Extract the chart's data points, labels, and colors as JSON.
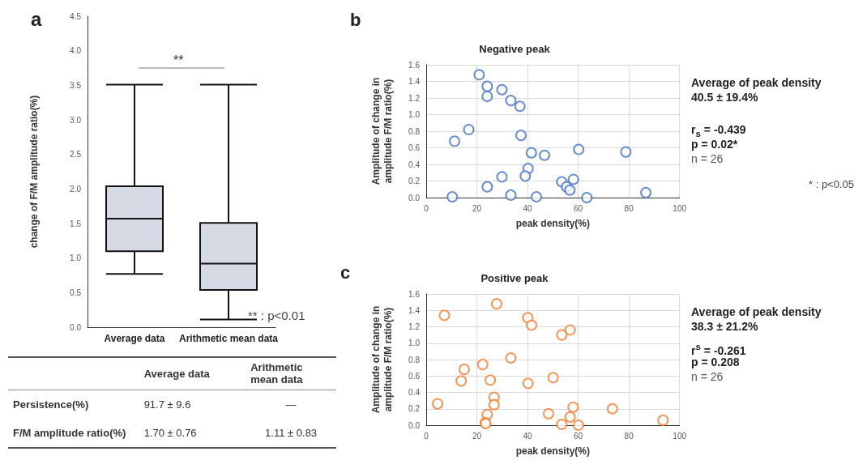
{
  "chart_data": [
    {
      "type": "box",
      "ylabel": "change of F/M amplitude ratio(%)",
      "categories": [
        "Average data",
        "Arithmetic mean data"
      ],
      "color": "#d6dae4",
      "boxes": [
        {
          "low": 0.77,
          "q1": 1.1,
          "median": 1.57,
          "q3": 2.04,
          "high": 3.51
        },
        {
          "low": 0.11,
          "q1": 0.54,
          "median": 0.92,
          "q3": 1.51,
          "high": 3.51
        }
      ],
      "ylim": [
        0,
        4.5
      ],
      "yticks": [
        {
          "value": 0,
          "label": "0.0"
        },
        0.5,
        {
          "value": 1,
          "label": "1.0"
        },
        1.5,
        {
          "value": 2,
          "label": "2.0"
        },
        2.5,
        {
          "value": 3,
          "label": "3.0"
        },
        3.5,
        {
          "value": 4,
          "label": "4.0"
        },
        4.5
      ],
      "annotations": [
        "a",
        "**",
        "** : p<0.01"
      ]
    },
    {
      "type": "other",
      "annotations": [
        "Average data",
        "Arithmetic mean data",
        "Persistence(%)",
        "91.7 ± 9.6",
        "—",
        "F/M amplitude ratio(%)",
        "1.70 ± 0.76",
        "1.11 ± 0.83"
      ]
    },
    {
      "type": "scatter",
      "title": "Negative peak",
      "xlabel": "peak density(%)",
      "ylabel": "Amplitude of change in amplitude F/M ratio(%)",
      "marker": "circle",
      "grid": true,
      "xlim": [
        0,
        100
      ],
      "xticks": [
        0,
        20,
        40,
        60,
        80,
        100
      ],
      "ylim": [
        0,
        1.6
      ],
      "yticks": [
        {
          "value": 0,
          "label": "0.0"
        },
        0.2,
        0.4,
        0.6,
        0.8,
        {
          "value": 1,
          "label": "1.0"
        },
        1.2,
        1.4,
        1.6
      ],
      "series": [
        {
          "color": "#4472c4",
          "x": [
            20.9,
            24.1,
            24.1,
            29.9,
            33.4,
            37.0,
            16.8,
            11.2,
            37.4,
            41.5,
            46.7,
            60.2,
            78.8,
            40.2,
            39.1,
            29.9,
            24.1,
            10.3,
            33.4,
            43.5,
            53.5,
            58.1,
            55.4,
            56.7,
            63.4,
            86.7
          ],
          "values": [
            1.48,
            1.34,
            1.22,
            1.3,
            1.17,
            1.1,
            0.82,
            0.68,
            0.75,
            0.54,
            0.51,
            0.58,
            0.55,
            0.35,
            0.26,
            0.25,
            0.13,
            0.01,
            0.03,
            0.01,
            0.19,
            0.22,
            0.13,
            0.09,
            0.0,
            0.06
          ]
        }
      ],
      "annotations": [
        "b",
        "Average of peak density",
        "40.5 ± 19.4%",
        "r$_{s}$ = -0.439",
        "p = 0.02*",
        "n = 26",
        "* : p<0.05"
      ]
    },
    {
      "type": "scatter",
      "title": "Positive peak",
      "xlabel": "peak density(%)",
      "ylabel": "Amplitude of change in amplitude F/M ratio(%)",
      "marker": "circle",
      "grid": true,
      "xlim": [
        0,
        100
      ],
      "xticks": [
        0,
        20,
        40,
        60,
        80,
        100
      ],
      "ylim": [
        0,
        1.6
      ],
      "yticks": [
        {
          "value": 0,
          "label": "0.0"
        },
        0.2,
        0.4,
        0.6,
        0.8,
        {
          "value": 1,
          "label": "1.0"
        },
        1.2,
        1.4,
        1.6
      ],
      "series": [
        {
          "color": "#ed7d31",
          "x": [
            27.8,
            7.2,
            40.1,
            41.6,
            56.8,
            53.5,
            33.4,
            22.3,
            15.0,
            13.8,
            25.3,
            50.1,
            40.2,
            4.5,
            26.8,
            26.8,
            58.0,
            73.5,
            24.1,
            48.3,
            56.8,
            23.3,
            23.5,
            53.5,
            60.1,
            93.5
          ],
          "values": [
            1.48,
            1.34,
            1.31,
            1.22,
            1.16,
            1.1,
            0.82,
            0.74,
            0.68,
            0.54,
            0.55,
            0.58,
            0.51,
            0.26,
            0.34,
            0.25,
            0.22,
            0.2,
            0.13,
            0.14,
            0.1,
            0.03,
            0.02,
            0.01,
            0.0,
            0.06
          ]
        }
      ],
      "annotations": [
        "c",
        "Average of peak density",
        "38.3 ± 21.2%",
        "r$^{s}$ = -0.261",
        "p = 0.208",
        "n = 26"
      ]
    }
  ]
}
